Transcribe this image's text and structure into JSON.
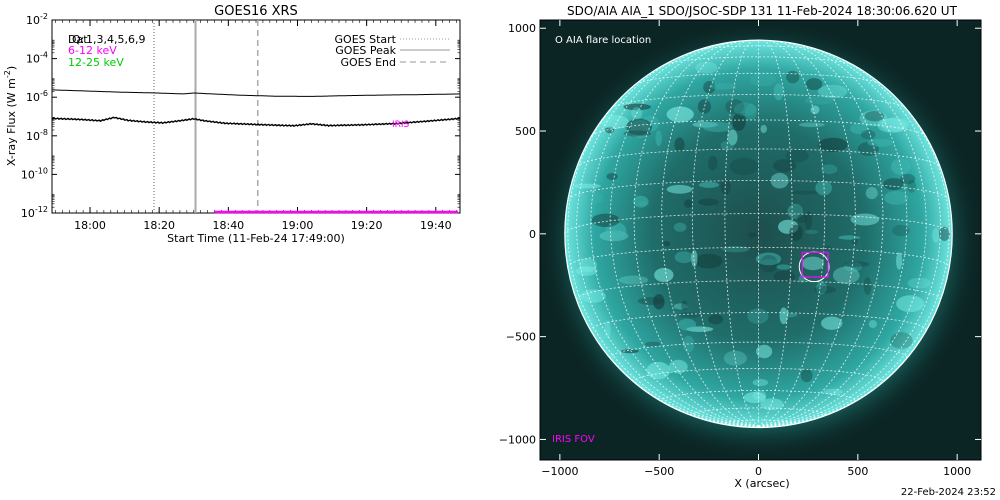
{
  "chart_data": [
    {
      "type": "line",
      "title": "GOES16 XRS",
      "ylabel_main": "X-ray Flux (W m",
      "ylabel_sup": "-2",
      "ylabel_close": ")",
      "xlabel": "Start Time (11-Feb-24 17:49:00)",
      "x_ticks": [
        "18:00",
        "18:20",
        "18:40",
        "19:00",
        "19:20",
        "19:40"
      ],
      "x_tick_minutes": [
        11,
        31,
        51,
        71,
        91,
        111
      ],
      "x_range_minutes": [
        0,
        118
      ],
      "y_scale": "log",
      "y_range_exp": [
        -12,
        -2
      ],
      "y_tick_exps": [
        -12,
        -10,
        -8,
        -6,
        -4,
        -2
      ],
      "y_tick_base": "10",
      "y_tick_sups": [
        "-12",
        "-10",
        "-8",
        "-6",
        "-4",
        "-2"
      ],
      "legend_left": [
        {
          "text": "Dat",
          "color": "#000000"
        },
        {
          "text": "Q:",
          "color": "#000000"
        },
        {
          "text": "1,3,4,5,6,9",
          "color": "#000000"
        },
        {
          "text": "6-12 keV",
          "color": "#ff00ff"
        },
        {
          "text": "12-25 keV",
          "color": "#00cc00"
        }
      ],
      "legend_right": [
        {
          "text": "GOES Start",
          "style": "dotted"
        },
        {
          "text": "GOES Peak",
          "style": "solid"
        },
        {
          "text": "GOES End",
          "style": "dashed"
        }
      ],
      "vlines": [
        {
          "name": "GOES Start",
          "minute": 29.5,
          "style": "dotted",
          "color": "#999999"
        },
        {
          "name": "GOES Peak",
          "minute": 41.5,
          "style": "solid",
          "color": "#aaaaaa"
        },
        {
          "name": "GOES End",
          "minute": 59.5,
          "style": "dashed",
          "color": "#aaaaaa"
        }
      ],
      "iris_label": "IRIS",
      "iris_color": "#ff00ff",
      "iris_bar": {
        "minute_start": 47,
        "minute_end": 118,
        "exp": -11.95
      },
      "series": [
        {
          "key": "long",
          "color": "#000000",
          "minutes": [
            0,
            10,
            20,
            30,
            38,
            41,
            45,
            55,
            65,
            75,
            85,
            95,
            105,
            118
          ],
          "exps": [
            -5.62,
            -5.68,
            -5.74,
            -5.78,
            -5.83,
            -5.78,
            -5.82,
            -5.9,
            -5.95,
            -5.96,
            -5.92,
            -5.89,
            -5.87,
            -5.83
          ]
        },
        {
          "key": "short",
          "color": "#000000",
          "minutes": [
            0,
            8,
            14,
            18,
            22,
            27,
            32,
            37,
            41,
            44,
            50,
            60,
            70,
            75,
            80,
            90,
            100,
            110,
            118
          ],
          "exps": [
            -7.1,
            -7.15,
            -7.22,
            -7.05,
            -7.2,
            -7.28,
            -7.33,
            -7.22,
            -7.12,
            -7.22,
            -7.35,
            -7.42,
            -7.48,
            -7.38,
            -7.47,
            -7.43,
            -7.36,
            -7.22,
            -7.1
          ]
        }
      ]
    },
    {
      "type": "scatter",
      "title": "SDO/AIA AIA_1 SDO/JSOC-SDP 131 11-Feb-2024 18:30:06.620 UT",
      "xlabel": "X (arcsec)",
      "x_range": [
        -1100,
        1120
      ],
      "y_range": [
        -1100,
        1040
      ],
      "x_ticks": [
        -1000,
        -500,
        0,
        500,
        1000
      ],
      "x_tick_labels": [
        "−1000",
        "−500",
        "0",
        "500",
        "1000"
      ],
      "y_ticks": [
        -1000,
        -500,
        0,
        500,
        1000
      ],
      "y_tick_labels": [
        "−1000",
        "−500",
        "0",
        "500",
        "1000"
      ],
      "sun_radius_arcsec": 975,
      "flare_legend": "O AIA flare location",
      "iris_fov_label": "IRIS FOV",
      "iris_fov_color": "#ff00ff",
      "flare_location": {
        "x": 280,
        "y": -160,
        "r": 75
      },
      "iris_fov": {
        "x": 220,
        "y": -210,
        "w": 130,
        "h": 120
      },
      "grid_color": "#ffffff",
      "disk_color": "#3fc7c2"
    }
  ],
  "footer": {
    "timestamp": "22-Feb-2024 23:52"
  }
}
